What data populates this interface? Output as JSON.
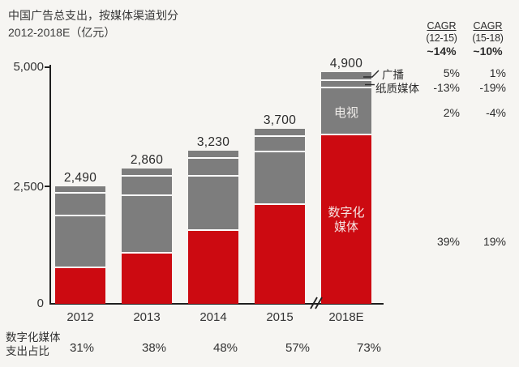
{
  "title": {
    "line1": "中国广告总支出，按媒体渠道划分",
    "line2": "2012-2018E（亿元）"
  },
  "colors": {
    "red": "#cc0a11",
    "gray": "#7d7d7d",
    "background": "#f6f5f2",
    "axis": "#1f1f1f",
    "text": "#2f2f2f",
    "tv_label_text": "#f0edea",
    "digital_label_text": "#f6e4e2"
  },
  "chart_data": {
    "type": "bar",
    "stacked": true,
    "title": "中国广告总支出，按媒体渠道划分 2012-2018E（亿元）",
    "categories": [
      "2012",
      "2013",
      "2014",
      "2015",
      "2018E"
    ],
    "totals": [
      2490,
      2860,
      3230,
      3700,
      4900
    ],
    "total_labels": [
      "2,490",
      "2,860",
      "3,230",
      "3,700",
      "4,900"
    ],
    "series": [
      {
        "name": "数字化媒体",
        "color_key": "red",
        "values": [
          772,
          1087,
          1550,
          2109,
          3577
        ]
      },
      {
        "name": "电视",
        "color_key": "gray",
        "values": [
          1098,
          1206,
          1161,
          1119,
          990
        ]
      },
      {
        "name": "纸质媒体",
        "color_key": "gray",
        "values": [
          480,
          420,
          365,
          310,
          165
        ]
      },
      {
        "name": "广播",
        "color_key": "gray",
        "values": [
          140,
          147,
          154,
          162,
          168
        ]
      }
    ],
    "y_ticks": [
      "5,000",
      "2,500",
      "0"
    ],
    "ylim": [
      0,
      5000
    ],
    "grid": false,
    "axis_break_between": [
      "2015",
      "2018E"
    ],
    "digital_share_row": [
      "31%",
      "38%",
      "48%",
      "57%",
      "73%"
    ]
  },
  "cagr": {
    "col1": {
      "header": "CAGR",
      "range": "(12-15)",
      "overall": "~14%"
    },
    "col2": {
      "header": "CAGR",
      "range": "(15-18)",
      "overall": "~10%"
    },
    "rows": [
      {
        "segment": "广播",
        "c1": "5%",
        "c2": "1%"
      },
      {
        "segment": "纸质媒体",
        "c1": "-13%",
        "c2": "-19%"
      },
      {
        "segment": "电视",
        "c1": "2%",
        "c2": "-4%"
      },
      {
        "segment": "数字化媒体",
        "c1": "39%",
        "c2": "19%"
      }
    ]
  },
  "annotations": {
    "radio": "广播",
    "print": "纸质媒体",
    "tv": "电视",
    "digital_line1": "数字化",
    "digital_line2": "媒体"
  },
  "bottom": {
    "row_label_line1": "数字化媒体",
    "row_label_line2": "支出占比"
  }
}
